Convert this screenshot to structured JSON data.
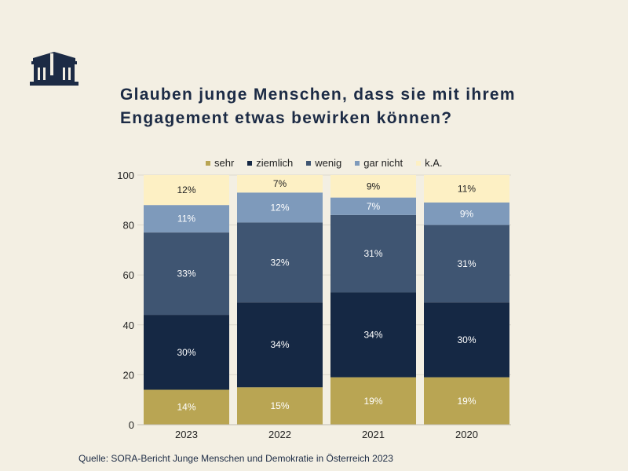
{
  "title": "Glauben junge Menschen, dass sie mit ihrem Engagement etwas bewirken können?",
  "source": "Quelle: SORA-Bericht Junge Menschen und Demokratie in Österreich 2023",
  "logo": {
    "icon": "parliament-building-icon",
    "color": "#1c2b45"
  },
  "chart_data": {
    "type": "bar",
    "stacked": true,
    "categories": [
      "2023",
      "2022",
      "2021",
      "2020"
    ],
    "series": [
      {
        "name": "sehr",
        "color": "#b9a553",
        "values": [
          14,
          15,
          19,
          19
        ],
        "labels": [
          "14%",
          "15%",
          "19%",
          "19%"
        ]
      },
      {
        "name": "ziemlich",
        "color": "#152844",
        "values": [
          30,
          34,
          34,
          30
        ],
        "labels": [
          "30%",
          "34%",
          "34%",
          "30%"
        ]
      },
      {
        "name": "wenig",
        "color": "#3f5572",
        "values": [
          33,
          32,
          31,
          31
        ],
        "labels": [
          "33%",
          "32%",
          "31%",
          "31%"
        ]
      },
      {
        "name": "gar nicht",
        "color": "#7e9abb",
        "values": [
          11,
          12,
          7,
          9
        ],
        "labels": [
          "11%",
          "12%",
          "7%",
          "9%"
        ]
      },
      {
        "name": "k.A.",
        "color": "#fdf0c4",
        "values": [
          12,
          7,
          9,
          11
        ],
        "labels": [
          "12%",
          "7%",
          "9%",
          "11%"
        ]
      }
    ],
    "ylim": [
      0,
      100
    ],
    "yticks": [
      0,
      20,
      40,
      60,
      80,
      100
    ],
    "grid": true,
    "legend": "top"
  }
}
